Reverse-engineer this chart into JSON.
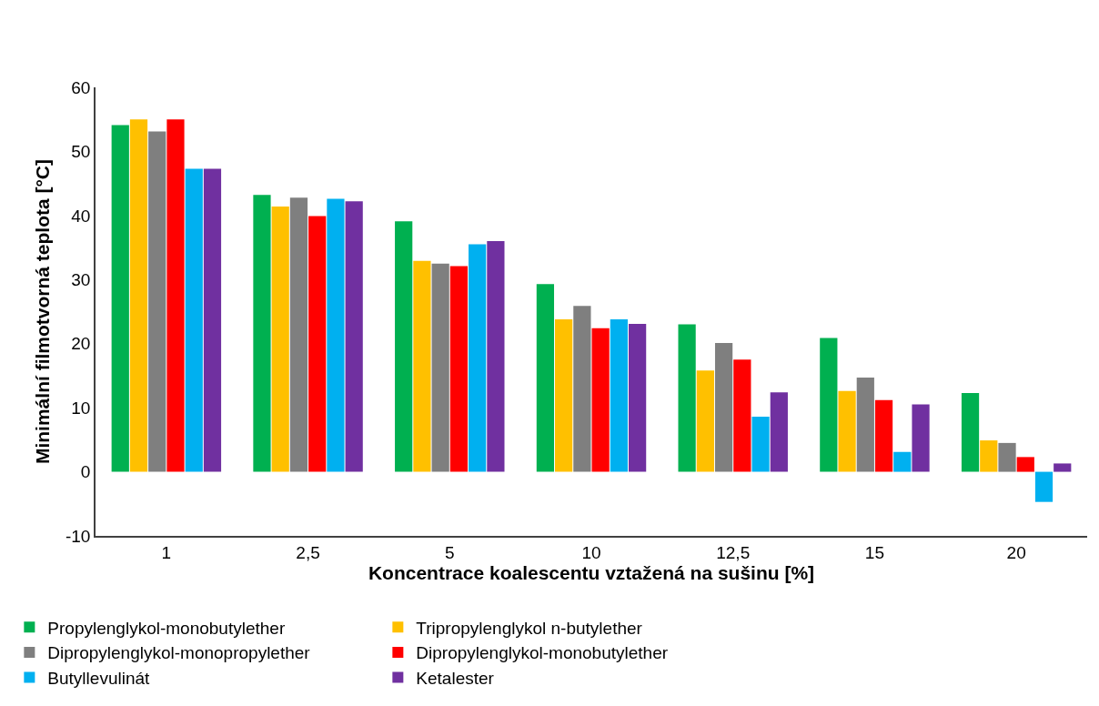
{
  "chart_data": {
    "type": "bar",
    "xlabel": "Koncentrace koalescentu vztažená na sušinu [%]",
    "ylabel": "Minimální filmotvorná teplota [°C]",
    "categories": [
      "1",
      "2,5",
      "5",
      "10",
      "12,5",
      "15",
      "20"
    ],
    "series": [
      {
        "name": "Propylenglykol-monobutylether",
        "color": "#00b050",
        "values": [
          54.1,
          43.2,
          39.1,
          29.3,
          23.0,
          20.9,
          12.3
        ]
      },
      {
        "name": "Tripropylenglykol n-butylether",
        "color": "#ffc000",
        "values": [
          55.0,
          41.4,
          32.9,
          23.8,
          15.8,
          12.6,
          4.9
        ]
      },
      {
        "name": "Dipropylenglykol-monopropylether",
        "color": "#7f7f7f",
        "values": [
          53.1,
          42.8,
          32.5,
          25.9,
          20.1,
          14.7,
          4.5
        ]
      },
      {
        "name": "Dipropylenglykol-monobutylether",
        "color": "#ff0000",
        "values": [
          55.0,
          39.9,
          32.1,
          22.4,
          17.5,
          11.2,
          2.3
        ]
      },
      {
        "name": "Butyllevulinát",
        "color": "#00b0f0",
        "values": [
          47.3,
          42.6,
          35.5,
          23.8,
          8.6,
          3.1,
          -4.7
        ]
      },
      {
        "name": "Ketalester",
        "color": "#7030a0",
        "values": [
          47.3,
          42.2,
          36.0,
          23.1,
          12.4,
          10.5,
          1.3
        ]
      }
    ],
    "ylim": [
      -10,
      60
    ],
    "yticks": [
      -10,
      0,
      10,
      20,
      30,
      40,
      50,
      60
    ],
    "legend": "bottom"
  }
}
